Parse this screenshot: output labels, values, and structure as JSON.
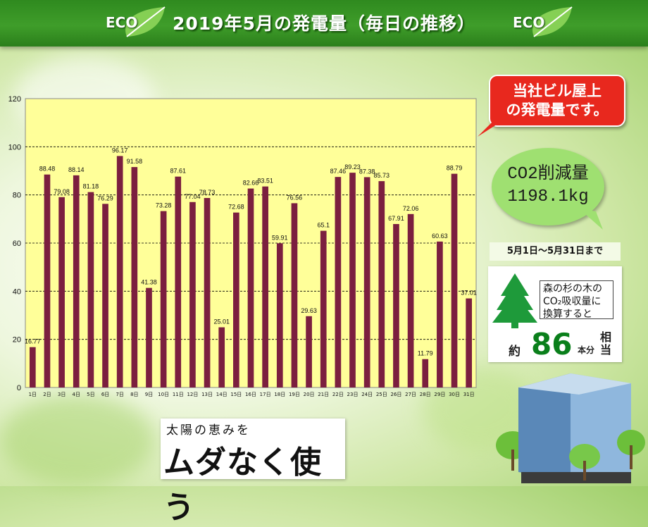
{
  "header": {
    "title": "2019年5月の発電量（毎日の推移）",
    "eco_label": "ECO"
  },
  "callout": {
    "text": "当社ビル屋上\nの発電量です。"
  },
  "co2": {
    "text": "CO2削減量\n1198.1kg"
  },
  "period": {
    "text": "5月1日～5月31日まで"
  },
  "tree": {
    "description_line1": "森の杉の木の",
    "description_line2": "CO₂吸収量に",
    "description_line3": "換算すると",
    "prefix": "約",
    "count": "86",
    "unit": "本分",
    "suffix": "相\n当"
  },
  "slogan": {
    "top": "太陽の恵みを",
    "main": "ムダなく使う"
  },
  "colors": {
    "bar": "#7b1f3f",
    "plot_bg": "#ffff99",
    "header": "#3f9d2a",
    "callout": "#e8281e",
    "bubble": "#9fe071",
    "tree": "#1e9a3a"
  },
  "chart_data": {
    "type": "bar",
    "categories": [
      "1日",
      "2日",
      "3日",
      "4日",
      "5日",
      "6日",
      "7日",
      "8日",
      "9日",
      "10日",
      "11日",
      "12日",
      "13日",
      "14日",
      "15日",
      "16日",
      "17日",
      "18日",
      "19日",
      "20日",
      "21日",
      "22日",
      "23日",
      "24日",
      "25日",
      "26日",
      "27日",
      "28日",
      "29日",
      "30日",
      "31日"
    ],
    "values": [
      16.77,
      88.48,
      79.08,
      88.14,
      81.18,
      76.29,
      96.17,
      91.58,
      41.38,
      73.28,
      87.61,
      77.04,
      78.73,
      25.01,
      72.68,
      82.66,
      83.51,
      59.91,
      76.56,
      29.63,
      65.1,
      87.46,
      89.23,
      87.38,
      85.73,
      67.91,
      72.06,
      11.79,
      60.63,
      88.79,
      37.01
    ],
    "labels": [
      "16.77",
      "88.48",
      "79.08",
      "88.14",
      "81.18",
      "76.29",
      "96.17",
      "91.58",
      "41.38",
      "73.28",
      "87.61",
      "77.04",
      "78.73",
      "25.01",
      "72.68",
      "82.66",
      "83.51",
      "59.91",
      "76.56",
      "29.63",
      "65.1",
      "87.46",
      "89.23",
      "87.38",
      "85.73",
      "67.91",
      "72.06",
      "11.79",
      "60.63",
      "88.79",
      "37.01"
    ],
    "ylim": [
      0,
      120
    ],
    "yticks": [
      0,
      20,
      40,
      60,
      80,
      100,
      120
    ],
    "grid": true,
    "legend": "none"
  }
}
